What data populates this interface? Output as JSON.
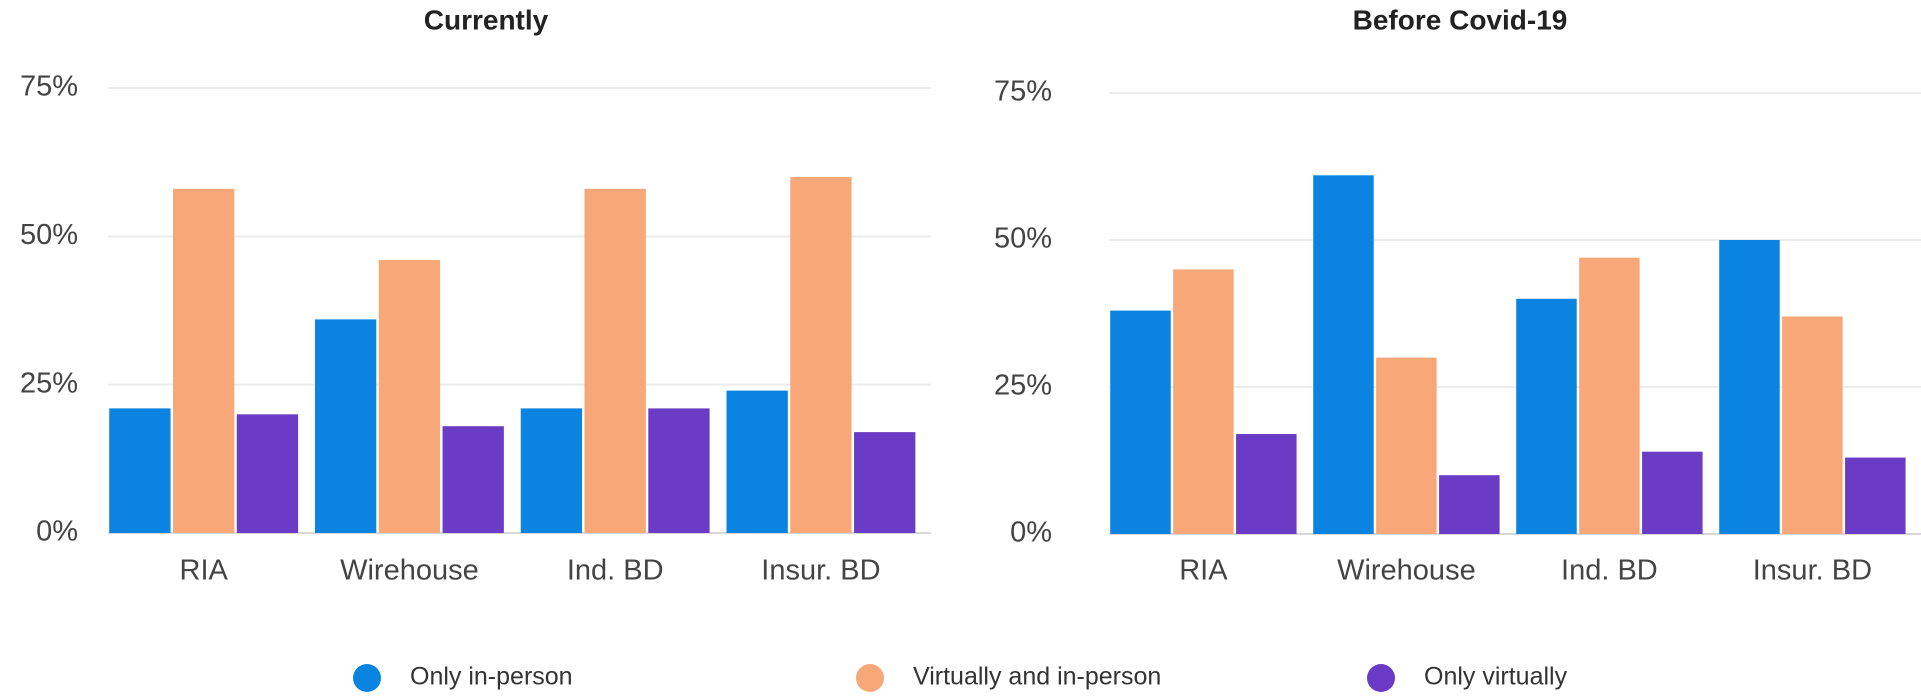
{
  "chart_data": [
    {
      "type": "bar",
      "title": "Currently",
      "categories": [
        "RIA",
        "Wirehouse",
        "Ind. BD",
        "Insur. BD"
      ],
      "series": [
        {
          "name": "Only in-person",
          "color": "#0a84e0",
          "values": [
            21,
            36,
            21,
            24
          ]
        },
        {
          "name": "Virtually and in-person",
          "color": "#f8a878",
          "values": [
            58,
            46,
            58,
            60
          ]
        },
        {
          "name": "Only virtually",
          "color": "#6a3bc4",
          "values": [
            20,
            18,
            21,
            17
          ]
        }
      ],
      "ylim": [
        0,
        75
      ],
      "yticks": [
        {
          "value": 0,
          "label": "0%"
        },
        {
          "value": 25,
          "label": "25%"
        },
        {
          "value": 50,
          "label": "50%"
        },
        {
          "value": 75,
          "label": "75%"
        }
      ],
      "grid": true,
      "legend": "bottom"
    },
    {
      "type": "bar",
      "title": "Before Covid-19",
      "categories": [
        "RIA",
        "Wirehouse",
        "Ind. BD",
        "Insur. BD"
      ],
      "series": [
        {
          "name": "Only in-person",
          "color": "#0a84e0",
          "values": [
            38,
            61,
            40,
            50
          ]
        },
        {
          "name": "Virtually and in-person",
          "color": "#f8a878",
          "values": [
            45,
            30,
            47,
            37
          ]
        },
        {
          "name": "Only virtually",
          "color": "#6a3bc4",
          "values": [
            17,
            10,
            14,
            13
          ]
        }
      ],
      "ylim": [
        0,
        75
      ],
      "yticks": [
        {
          "value": 0,
          "label": "0%"
        },
        {
          "value": 25,
          "label": "25%"
        },
        {
          "value": 50,
          "label": "50%"
        },
        {
          "value": 75,
          "label": "75%"
        }
      ],
      "grid": true,
      "legend": "bottom"
    }
  ]
}
